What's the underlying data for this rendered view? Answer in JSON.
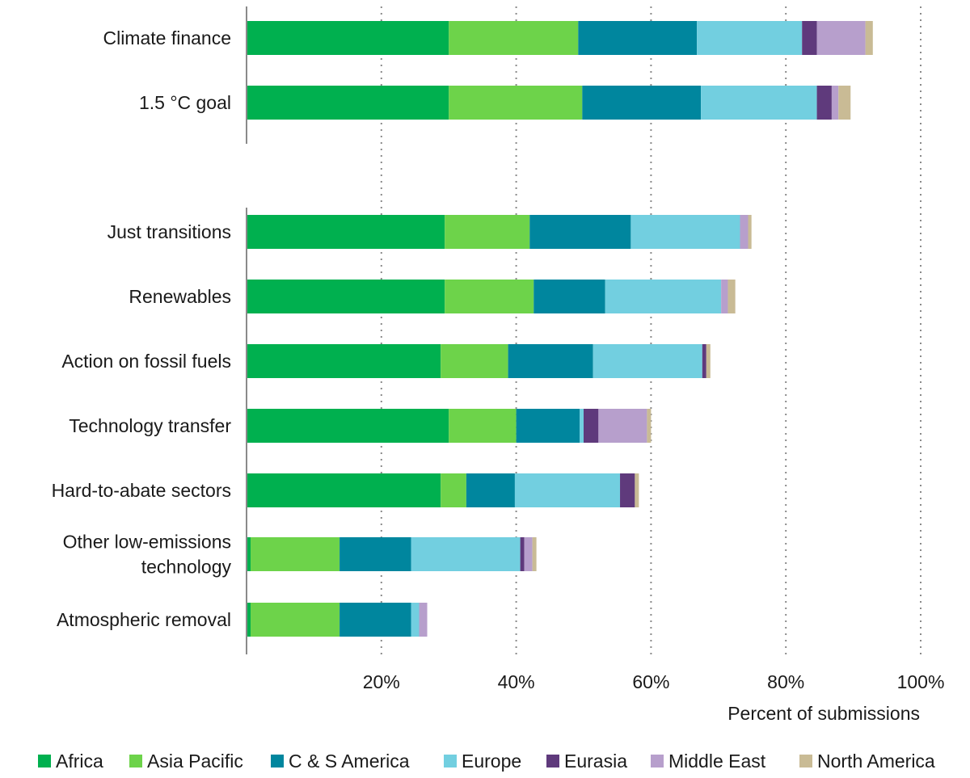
{
  "chart_data": {
    "type": "bar",
    "orientation": "horizontal",
    "stacked": true,
    "xlabel": "Percent of submissions",
    "xlim": [
      0,
      100
    ],
    "xticks": [
      20,
      40,
      60,
      80,
      100
    ],
    "xtick_labels": [
      "20%",
      "40%",
      "60%",
      "80%",
      "100%"
    ],
    "grid": "vertical dotted",
    "legend": "bottom",
    "groups": [
      [
        "Climate finance",
        "1.5 °C  goal"
      ],
      [
        "Just transitions",
        "Renewables",
        "Action on fossil fuels",
        "Technology transfer",
        "Hard-to-abate sectors",
        "Other low-emissions technology",
        "Atmospheric removal"
      ]
    ],
    "categories": [
      "Climate finance",
      "1.5 °C  goal",
      "Just transitions",
      "Renewables",
      "Action on fossil fuels",
      "Technology transfer",
      "Hard-to-abate sectors",
      "Other low-emissions technology",
      "Atmospheric removal"
    ],
    "category_lines": [
      [
        "Climate finance"
      ],
      [
        "1.5 °C  goal"
      ],
      [
        "Just transitions"
      ],
      [
        "Renewables"
      ],
      [
        "Action on fossil fuels"
      ],
      [
        "Technology transfer"
      ],
      [
        "Hard-to-abate sectors"
      ],
      [
        "Other low-emissions",
        "technology"
      ],
      [
        "Atmospheric removal"
      ]
    ],
    "series": [
      {
        "name": "Africa",
        "color": "#00b04f",
        "values": [
          30.0,
          30.0,
          29.4,
          29.4,
          28.8,
          30.0,
          28.8,
          0.6,
          0.6
        ]
      },
      {
        "name": "Asia Pacific",
        "color": "#6dd34a",
        "values": [
          19.2,
          19.8,
          12.6,
          13.2,
          10.0,
          10.0,
          3.8,
          13.2,
          13.2
        ]
      },
      {
        "name": "C & S America",
        "color": "#00869e",
        "values": [
          17.6,
          17.6,
          15.0,
          10.6,
          12.6,
          9.4,
          7.2,
          10.6,
          10.6
        ]
      },
      {
        "name": "Europe",
        "color": "#72cfe0",
        "values": [
          15.6,
          17.2,
          16.2,
          17.2,
          16.2,
          0.6,
          15.6,
          16.2,
          1.2
        ]
      },
      {
        "name": "Eurasia",
        "color": "#5f3a7c",
        "values": [
          2.2,
          2.2,
          0.0,
          0.0,
          0.6,
          2.2,
          2.2,
          0.6,
          0.0
        ]
      },
      {
        "name": "Middle East",
        "color": "#b79fcc",
        "values": [
          7.2,
          1.0,
          1.2,
          1.0,
          0.0,
          7.2,
          0.0,
          1.2,
          1.2
        ]
      },
      {
        "name": "North America",
        "color": "#c9bb95",
        "values": [
          1.1,
          1.8,
          0.5,
          1.1,
          0.6,
          0.6,
          0.6,
          0.6,
          0.0
        ]
      }
    ]
  }
}
